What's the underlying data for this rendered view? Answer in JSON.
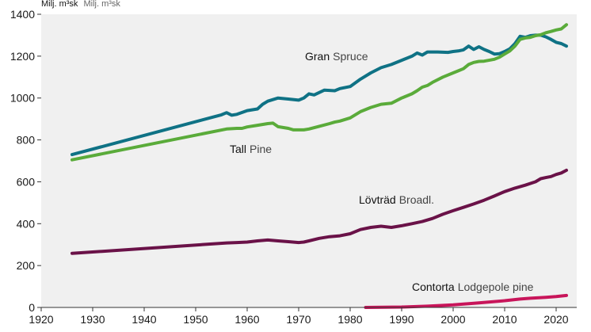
{
  "chart_data": {
    "type": "line",
    "unit_label": {
      "swedish": "Milj. m³sk",
      "english": "Milj. m³sk"
    },
    "xlim": [
      1920,
      2024
    ],
    "ylim": [
      0,
      1400
    ],
    "x_ticks": [
      "1920",
      "1930",
      "1940",
      "1950",
      "1960",
      "1970",
      "1980",
      "1990",
      "2000",
      "2010",
      "2020"
    ],
    "y_ticks": [
      "0",
      "200",
      "400",
      "600",
      "800",
      "1000",
      "1200",
      "1400"
    ],
    "grid": false,
    "colors": {
      "plot_bg": "#f0f0f0",
      "label_english": "#444444",
      "label_swedish": "#111111"
    },
    "series": [
      {
        "name": "Gran Spruce",
        "label_swedish": "Gran",
        "label_english": "Spruce",
        "color": "#0f7285",
        "points": [
          [
            1926,
            730
          ],
          [
            1955,
            920
          ],
          [
            1956,
            930
          ],
          [
            1957,
            918
          ],
          [
            1958,
            922
          ],
          [
            1960,
            940
          ],
          [
            1962,
            948
          ],
          [
            1963,
            970
          ],
          [
            1964,
            985
          ],
          [
            1966,
            1000
          ],
          [
            1968,
            995
          ],
          [
            1970,
            990
          ],
          [
            1971,
            1000
          ],
          [
            1972,
            1020
          ],
          [
            1973,
            1015
          ],
          [
            1975,
            1038
          ],
          [
            1977,
            1035
          ],
          [
            1978,
            1045
          ],
          [
            1980,
            1055
          ],
          [
            1982,
            1090
          ],
          [
            1984,
            1120
          ],
          [
            1986,
            1145
          ],
          [
            1988,
            1160
          ],
          [
            1990,
            1180
          ],
          [
            1991,
            1190
          ],
          [
            1992,
            1200
          ],
          [
            1993,
            1215
          ],
          [
            1994,
            1205
          ],
          [
            1995,
            1220
          ],
          [
            1997,
            1220
          ],
          [
            1999,
            1218
          ],
          [
            2000,
            1222
          ],
          [
            2001,
            1225
          ],
          [
            2002,
            1230
          ],
          [
            2003,
            1248
          ],
          [
            2004,
            1232
          ],
          [
            2005,
            1245
          ],
          [
            2006,
            1232
          ],
          [
            2007,
            1222
          ],
          [
            2008,
            1210
          ],
          [
            2009,
            1212
          ],
          [
            2010,
            1222
          ],
          [
            2011,
            1235
          ],
          [
            2012,
            1260
          ],
          [
            2013,
            1295
          ],
          [
            2014,
            1290
          ],
          [
            2015,
            1298
          ],
          [
            2016,
            1300
          ],
          [
            2017,
            1300
          ],
          [
            2018,
            1292
          ],
          [
            2019,
            1280
          ],
          [
            2020,
            1266
          ],
          [
            2021,
            1260
          ],
          [
            2022,
            1248
          ]
        ]
      },
      {
        "name": "Tall Pine",
        "label_swedish": "Tall",
        "label_english": "Pine",
        "color": "#5aab3a",
        "points": [
          [
            1926,
            705
          ],
          [
            1956,
            852
          ],
          [
            1958,
            855
          ],
          [
            1959,
            855
          ],
          [
            1960,
            862
          ],
          [
            1962,
            870
          ],
          [
            1964,
            878
          ],
          [
            1965,
            880
          ],
          [
            1966,
            863
          ],
          [
            1968,
            855
          ],
          [
            1969,
            848
          ],
          [
            1971,
            848
          ],
          [
            1972,
            852
          ],
          [
            1974,
            865
          ],
          [
            1976,
            878
          ],
          [
            1977,
            885
          ],
          [
            1978,
            890
          ],
          [
            1980,
            905
          ],
          [
            1982,
            935
          ],
          [
            1984,
            955
          ],
          [
            1986,
            970
          ],
          [
            1988,
            975
          ],
          [
            1990,
            1000
          ],
          [
            1992,
            1020
          ],
          [
            1993,
            1035
          ],
          [
            1994,
            1052
          ],
          [
            1995,
            1060
          ],
          [
            1996,
            1075
          ],
          [
            1998,
            1100
          ],
          [
            2000,
            1120
          ],
          [
            2001,
            1130
          ],
          [
            2002,
            1140
          ],
          [
            2003,
            1160
          ],
          [
            2004,
            1170
          ],
          [
            2005,
            1175
          ],
          [
            2006,
            1176
          ],
          [
            2008,
            1185
          ],
          [
            2009,
            1195
          ],
          [
            2010,
            1210
          ],
          [
            2011,
            1225
          ],
          [
            2012,
            1248
          ],
          [
            2013,
            1280
          ],
          [
            2014,
            1287
          ],
          [
            2015,
            1290
          ],
          [
            2016,
            1298
          ],
          [
            2017,
            1302
          ],
          [
            2018,
            1312
          ],
          [
            2019,
            1318
          ],
          [
            2020,
            1325
          ],
          [
            2021,
            1330
          ],
          [
            2022,
            1350
          ]
        ]
      },
      {
        "name": "Lövträd Broadl.",
        "label_swedish": "Lövträd",
        "label_english": "Broadl.",
        "color": "#6a1248",
        "points": [
          [
            1926,
            258
          ],
          [
            1956,
            308
          ],
          [
            1958,
            310
          ],
          [
            1960,
            312
          ],
          [
            1962,
            318
          ],
          [
            1964,
            322
          ],
          [
            1966,
            318
          ],
          [
            1968,
            314
          ],
          [
            1970,
            310
          ],
          [
            1971,
            312
          ],
          [
            1972,
            318
          ],
          [
            1974,
            330
          ],
          [
            1976,
            338
          ],
          [
            1978,
            342
          ],
          [
            1980,
            352
          ],
          [
            1982,
            372
          ],
          [
            1984,
            382
          ],
          [
            1986,
            388
          ],
          [
            1988,
            382
          ],
          [
            1990,
            390
          ],
          [
            1992,
            400
          ],
          [
            1994,
            410
          ],
          [
            1996,
            425
          ],
          [
            1998,
            445
          ],
          [
            2000,
            462
          ],
          [
            2002,
            478
          ],
          [
            2004,
            494
          ],
          [
            2006,
            512
          ],
          [
            2008,
            532
          ],
          [
            2010,
            553
          ],
          [
            2012,
            570
          ],
          [
            2014,
            584
          ],
          [
            2016,
            600
          ],
          [
            2017,
            615
          ],
          [
            2018,
            620
          ],
          [
            2019,
            625
          ],
          [
            2020,
            635
          ],
          [
            2021,
            642
          ],
          [
            2022,
            655
          ]
        ]
      },
      {
        "name": "Contorta Lodgepole pine",
        "label_swedish": "Contorta",
        "label_english": "Lodgepole pine",
        "color": "#c8155a",
        "points": [
          [
            1983,
            0
          ],
          [
            1990,
            2
          ],
          [
            1995,
            6
          ],
          [
            2000,
            12
          ],
          [
            2005,
            22
          ],
          [
            2010,
            32
          ],
          [
            2013,
            40
          ],
          [
            2015,
            44
          ],
          [
            2018,
            48
          ],
          [
            2020,
            52
          ],
          [
            2022,
            57
          ]
        ]
      }
    ]
  }
}
